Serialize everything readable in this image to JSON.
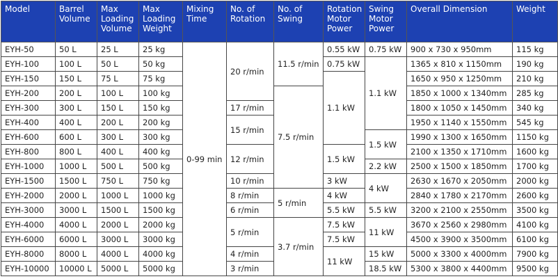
{
  "table": {
    "headers": [
      "Model",
      "Barrel Volume",
      "Max Loading Volume",
      "Max Loading Weight",
      "Mixing Time",
      "No. of Rotation",
      "No. of Swing",
      "Rotation Motor Power",
      "Swing Motor Power",
      "Overall Dimension",
      "Weight"
    ],
    "rows": [
      [
        "EYH-50",
        "50 L",
        "25 L",
        "25 kg",
        "0-99 min",
        "20 r/min",
        "11.5 r/min",
        "0.55 kW",
        "0.75 kW",
        "900 x 730 x 950mm",
        "115 kg"
      ],
      [
        "EYH-100",
        "100 L",
        "50 L",
        "50 kg",
        "0.75 kW",
        "1.1 kW",
        "1365 x 810 x 1150mm",
        "190 kg"
      ],
      [
        "EYH-150",
        "150 L",
        "75 L",
        "75 kg",
        "1.1 kW",
        "1650 x 950 x 1250mm",
        "210 kg"
      ],
      [
        "EYH-200",
        "200 L",
        "100 L",
        "100 kg",
        "7.5 r/min",
        "1850 x 1000 x 1340mm",
        "285 kg"
      ],
      [
        "EYH-300",
        "300 L",
        "150 L",
        "150 kg",
        "17 r/min",
        "1800 x 1050 x 1450mm",
        "340 kg"
      ],
      [
        "EYH-400",
        "400 L",
        "200 L",
        "200 kg",
        "15 r/min",
        "1950 x 1140 x 1550mm",
        "545 kg"
      ],
      [
        "EYH-600",
        "600 L",
        "300 L",
        "300 kg",
        "1.5 kW",
        "1990 x 1300 x 1650mm",
        "1150 kg"
      ],
      [
        "EYH-800",
        "800 L",
        "400 L",
        "400 kg",
        "12 r/min",
        "1.5 kW",
        "2100 x 1350 x 1710mm",
        "1600 kg"
      ],
      [
        "EYH-1000",
        "1000 L",
        "500 L",
        "500 kg",
        "2.2 kW",
        "2500 x 1500 x 1850mm",
        "1700 kg"
      ],
      [
        "EYH-1500",
        "1500 L",
        "750 L",
        "750 kg",
        "10 r/min",
        "3 kW",
        "4 kW",
        "2630 x 1670 x 2050mm",
        "2000 kg"
      ],
      [
        "EYH-2000",
        "2000 L",
        "1000 L",
        "1000 kg",
        "8 r/min",
        "5 r/min",
        "4 kW",
        "2840 x 1780 x 2170mm",
        "2600 kg"
      ],
      [
        "EYH-3000",
        "3000 L",
        "1500 L",
        "1500 kg",
        "6 r/min",
        "5.5 kW",
        "5.5 kW",
        "3200 x 2100 x 2550mm",
        "3500 kg"
      ],
      [
        "EYH-4000",
        "4000 L",
        "2000 L",
        "2000 kg",
        "5 r/min",
        "3.7 r/min",
        "7.5 kW",
        "11 kW",
        "3670 x 2560 x 2980mm",
        "4100 kg"
      ],
      [
        "EYH-6000",
        "6000 L",
        "3000 L",
        "3000 kg",
        "7.5 kW",
        "4500 x 3900 x 3500mm",
        "6100 kg"
      ],
      [
        "EYH-8000",
        "8000 L",
        "4000 L",
        "4000 kg",
        "4 r/min",
        "11 kW",
        "15 kW",
        "5000 x 3300 x 4000mm",
        "7900 kg"
      ],
      [
        "EYH-10000",
        "10000 L",
        "5000 L",
        "5000 kg",
        "3 r/min",
        "18.5 kW",
        "5300 x 3800 x 4400mm",
        "9500 kg"
      ]
    ]
  }
}
